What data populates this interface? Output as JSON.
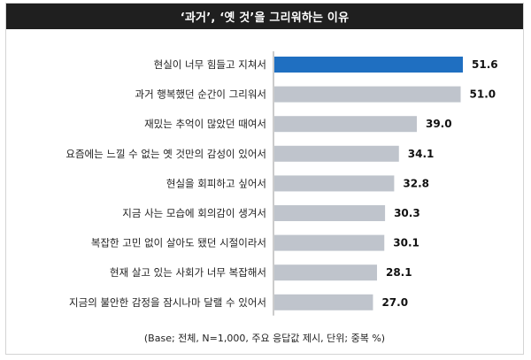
{
  "title": "‘과거’, ‘옛 것’을 그리워하는 이유",
  "footnote": "(Base; 전체, N=1,000, 주요 응답값 제시, 단위; 중복 %)",
  "colors": {
    "highlight": "#1f6fc1",
    "bar": "#bfc4cc",
    "title_bg": "#1f1f1f"
  },
  "chart_data": {
    "type": "bar",
    "orientation": "horizontal",
    "title": "‘과거’, ‘옛 것’을 그리워하는 이유",
    "categories": [
      "현실이 너무 힘들고 지쳐서",
      "과거 행복했던 순간이 그리워서",
      "재밌는 추억이 많았던 때여서",
      "요즘에는 느낄 수 없는 옛 것만의 감성이 있어서",
      "현실을 회피하고 싶어서",
      "지금 사는 모습에 회의감이 생겨서",
      "복잡한 고민 없이 살아도 됐던 시절이라서",
      "현재 살고 있는 사회가 너무 복잡해서",
      "지금의 불안한 감정을 잠시나마 달랠 수 있어서"
    ],
    "values": [
      51.6,
      51.0,
      39.0,
      34.1,
      32.8,
      30.3,
      30.1,
      28.1,
      27.0
    ],
    "value_labels": [
      "51.6",
      "51.0",
      "39.0",
      "34.1",
      "32.8",
      "30.3",
      "30.1",
      "28.1",
      "27.0"
    ],
    "highlight_index": 0,
    "xlim": [
      0,
      60
    ],
    "grid": false,
    "legend": "none"
  }
}
